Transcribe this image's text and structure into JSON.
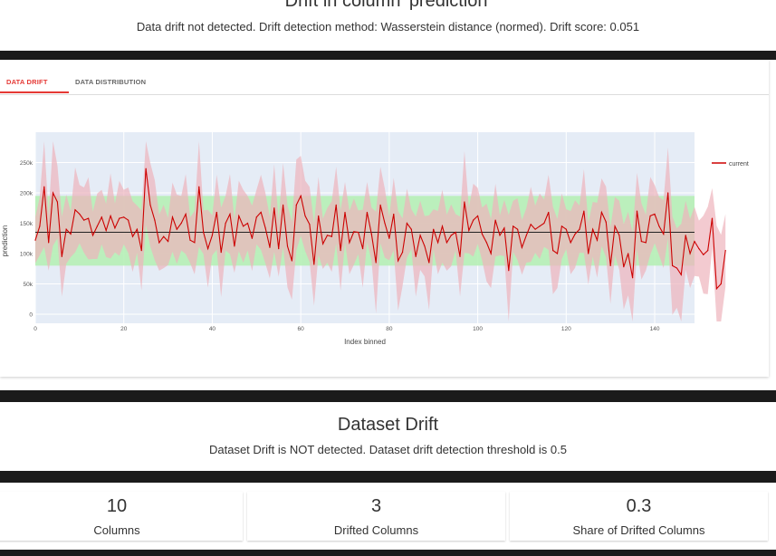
{
  "header": {
    "title": "Drift in column 'prediction'",
    "subtitle": "Data drift not detected. Drift detection method: Wasserstein distance (normed). Drift score: 0.051"
  },
  "tabs": [
    {
      "label": "DATA DRIFT",
      "active": true
    },
    {
      "label": "DATA DISTRIBUTION",
      "active": false
    }
  ],
  "colors": {
    "accent": "#e53935",
    "line": "#cc0000",
    "band_green": "#b6efb6",
    "band_red": "#eeb4bc",
    "plot_bg": "#e5ecf6",
    "dark_bar": "#1b1b1b"
  },
  "chart_data": {
    "type": "line",
    "xlabel": "Index binned",
    "ylabel": "prediction",
    "xlim": [
      0,
      149
    ],
    "ylim": [
      -15000,
      300000
    ],
    "x_ticks": [
      "0",
      "20",
      "40",
      "60",
      "80",
      "100",
      "120",
      "140"
    ],
    "y_ticks": [
      "0",
      "50k",
      "100k",
      "150k",
      "200k",
      "250k"
    ],
    "reference_mean": 135000,
    "green_band": [
      80000,
      195000
    ],
    "legend": "top-right",
    "series": [
      {
        "name": "current",
        "values": [
          122000,
          145000,
          210000,
          118000,
          200000,
          185000,
          95000,
          140000,
          132000,
          172000,
          165000,
          155000,
          158000,
          130000,
          145000,
          160000,
          138000,
          162000,
          142000,
          158000,
          160000,
          155000,
          128000,
          140000,
          105000,
          240000,
          180000,
          155000,
          118000,
          128000,
          120000,
          160000,
          140000,
          150000,
          165000,
          122000,
          118000,
          210000,
          135000,
          108000,
          130000,
          168000,
          102000,
          150000,
          165000,
          112000,
          162000,
          145000,
          150000,
          125000,
          160000,
          168000,
          142000,
          110000,
          175000,
          108000,
          180000,
          112000,
          88000,
          180000,
          195000,
          162000,
          148000,
          82000,
          162000,
          116000,
          130000,
          128000,
          180000,
          105000,
          168000,
          118000,
          136000,
          135000,
          108000,
          168000,
          132000,
          85000,
          180000,
          150000,
          125000,
          165000,
          88000,
          102000,
          150000,
          140000,
          95000,
          130000,
          112000,
          85000,
          140000,
          118000,
          145000,
          118000,
          130000,
          135000,
          95000,
          185000,
          138000,
          155000,
          162000,
          132000,
          118000,
          100000,
          155000,
          130000,
          142000,
          72000,
          145000,
          140000,
          110000,
          130000,
          148000,
          140000,
          145000,
          150000,
          168000,
          105000,
          100000,
          145000,
          140000,
          118000,
          132000,
          140000,
          170000,
          100000,
          140000,
          122000,
          168000,
          152000,
          80000,
          145000,
          130000,
          78000,
          100000,
          60000,
          170000,
          120000,
          118000,
          162000,
          165000,
          145000,
          132000,
          200000,
          80000,
          76000,
          65000,
          130000,
          100000,
          120000,
          108000,
          98000,
          105000,
          158000,
          42000,
          50000,
          105000
        ]
      }
    ]
  },
  "dataset_drift": {
    "title": "Dataset Drift",
    "subtitle": "Dataset Drift is NOT detected. Dataset drift detection threshold is 0.5"
  },
  "stats": [
    {
      "value": "10",
      "label": "Columns"
    },
    {
      "value": "3",
      "label": "Drifted Columns"
    },
    {
      "value": "0.3",
      "label": "Share of Drifted Columns"
    }
  ]
}
